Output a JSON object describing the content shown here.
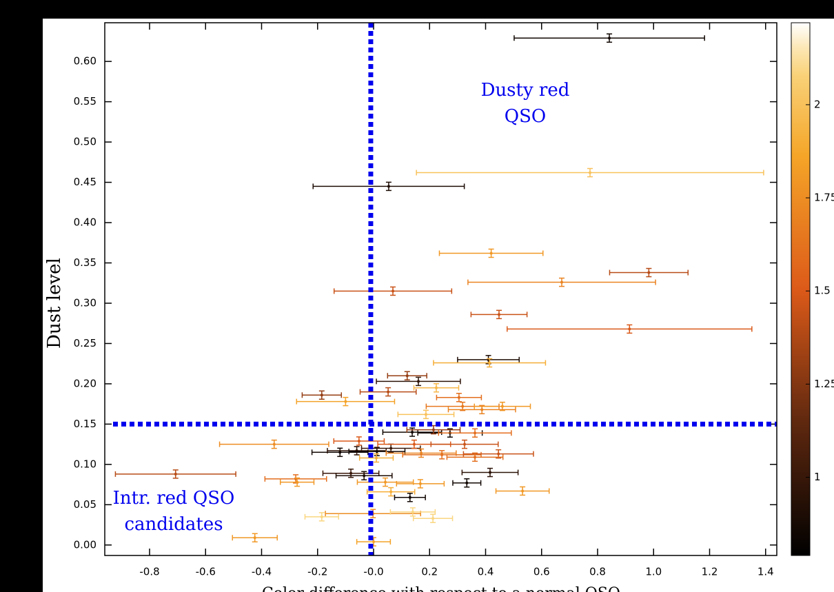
{
  "chart_data": {
    "type": "scatter",
    "x_label": "Color difference with respect to a normal QSO",
    "y_label": "Dust level",
    "annotations": [
      {
        "lines": [
          "Dusty red",
          "QSO"
        ]
      },
      {
        "lines": [
          "Intr. red QSO",
          "candidates"
        ]
      }
    ],
    "vlines": [
      -0.01
    ],
    "hlines": [
      0.15
    ],
    "line_color": "#0000ee",
    "xlim": [
      -0.96,
      1.44
    ],
    "ylim": [
      -0.013,
      0.648
    ],
    "xticks": [
      {
        "value": -0.8,
        "label": "-0.8"
      },
      {
        "value": -0.6,
        "label": "-0.6"
      },
      {
        "value": -0.4,
        "label": "-0.4"
      },
      {
        "value": -0.2,
        "label": "-0.2"
      },
      {
        "value": 0,
        "label": "-0.0"
      },
      {
        "value": 0.2,
        "label": "0.2"
      },
      {
        "value": 0.4,
        "label": "0.4"
      },
      {
        "value": 0.6,
        "label": "0.6"
      },
      {
        "value": 0.8,
        "label": "0.8"
      },
      {
        "value": 1.0,
        "label": "1.0"
      },
      {
        "value": 1.2,
        "label": "1.2"
      },
      {
        "value": 1.4,
        "label": "1.4"
      }
    ],
    "yticks": [
      {
        "value": 0,
        "label": "0.00"
      },
      {
        "value": 0.05,
        "label": "0.05"
      },
      {
        "value": 0.1,
        "label": "0.10"
      },
      {
        "value": 0.15,
        "label": "0.15"
      },
      {
        "value": 0.2,
        "label": "0.20"
      },
      {
        "value": 0.25,
        "label": "0.25"
      },
      {
        "value": 0.3,
        "label": "0.30"
      },
      {
        "value": 0.35,
        "label": "0.35"
      },
      {
        "value": 0.4,
        "label": "0.40"
      },
      {
        "value": 0.45,
        "label": "0.45"
      },
      {
        "value": 0.5,
        "label": "0.50"
      },
      {
        "value": 0.55,
        "label": "0.55"
      },
      {
        "value": 0.6,
        "label": "0.60"
      }
    ],
    "colorbar": {
      "lim": [
        0.79,
        2.22
      ],
      "ticks": [
        2,
        1.75,
        1.5,
        1.25,
        1
      ]
    },
    "x": [
      0.842,
      0.773,
      0.054,
      0.42,
      0.983,
      0.672,
      0.069,
      0.448,
      0.914,
      0.41,
      0.414,
      0.12,
      0.16,
      -0.185,
      0.052,
      -0.1,
      0.224,
      0.305,
      0.318,
      0.46,
      0.387,
      0.187,
      -0.355,
      0.138,
      0.273,
      0.214,
      0.362,
      -0.052,
      -0.12,
      -0.06,
      0.012,
      0.062,
      0.145,
      0.17,
      0.244,
      0.325,
      0.446,
      0.362,
      -0.707,
      -0.278,
      -0.273,
      -0.081,
      -0.034,
      0.01,
      0.042,
      0.416,
      0.333,
      0.167,
      0.13,
      0.532,
      0.062,
      -0.002,
      0.212,
      -0.185,
      -0.424,
      0.0,
      0.14
    ],
    "values": [
      0.629,
      0.462,
      0.445,
      0.362,
      0.338,
      0.326,
      0.315,
      0.286,
      0.268,
      0.23,
      0.226,
      0.21,
      0.203,
      0.186,
      0.19,
      0.178,
      0.195,
      0.183,
      0.172,
      0.172,
      0.168,
      0.162,
      0.125,
      0.14,
      0.139,
      0.143,
      0.139,
      0.129,
      0.115,
      0.117,
      0.116,
      0.12,
      0.125,
      0.114,
      0.112,
      0.125,
      0.113,
      0.109,
      0.088,
      0.082,
      0.078,
      0.089,
      0.086,
      0.108,
      0.078,
      0.09,
      0.077,
      0.076,
      0.059,
      0.067,
      0.066,
      0.039,
      0.033,
      0.035,
      0.009,
      0.004,
      0.041
    ],
    "xerr": [
      0.34,
      0.62,
      0.27,
      0.185,
      0.14,
      0.335,
      0.21,
      0.1,
      0.437,
      0.11,
      0.2,
      0.07,
      0.15,
      0.07,
      0.1,
      0.175,
      0.08,
      0.08,
      0.13,
      0.1,
      0.12,
      0.1,
      0.195,
      0.105,
      0.115,
      0.095,
      0.13,
      0.09,
      0.1,
      0.105,
      0.1,
      0.105,
      0.13,
      0.125,
      0.14,
      0.12,
      0.125,
      0.1,
      0.215,
      0.11,
      0.06,
      0.1,
      0.1,
      0.06,
      0.1,
      0.1,
      0.05,
      0.085,
      0.055,
      0.095,
      0.085,
      0.17,
      0.07,
      0.06,
      0.08,
      0.06,
      0.08
    ],
    "z": [
      0.85,
      2.0,
      0.9,
      1.8,
      1.4,
      1.7,
      1.45,
      1.45,
      1.5,
      0.9,
      1.9,
      1.3,
      0.95,
      1.3,
      1.4,
      1.85,
      1.95,
      1.6,
      1.65,
      1.8,
      1.7,
      2.0,
      1.75,
      0.85,
      0.85,
      1.3,
      1.6,
      1.5,
      0.85,
      0.95,
      0.85,
      1.0,
      1.5,
      1.7,
      1.6,
      1.45,
      1.45,
      1.6,
      1.4,
      1.6,
      1.8,
      1.0,
      0.9,
      1.9,
      1.8,
      0.95,
      0.85,
      1.8,
      0.85,
      1.8,
      1.9,
      1.75,
      2.1,
      2.1,
      1.8,
      1.85,
      2.1
    ]
  }
}
